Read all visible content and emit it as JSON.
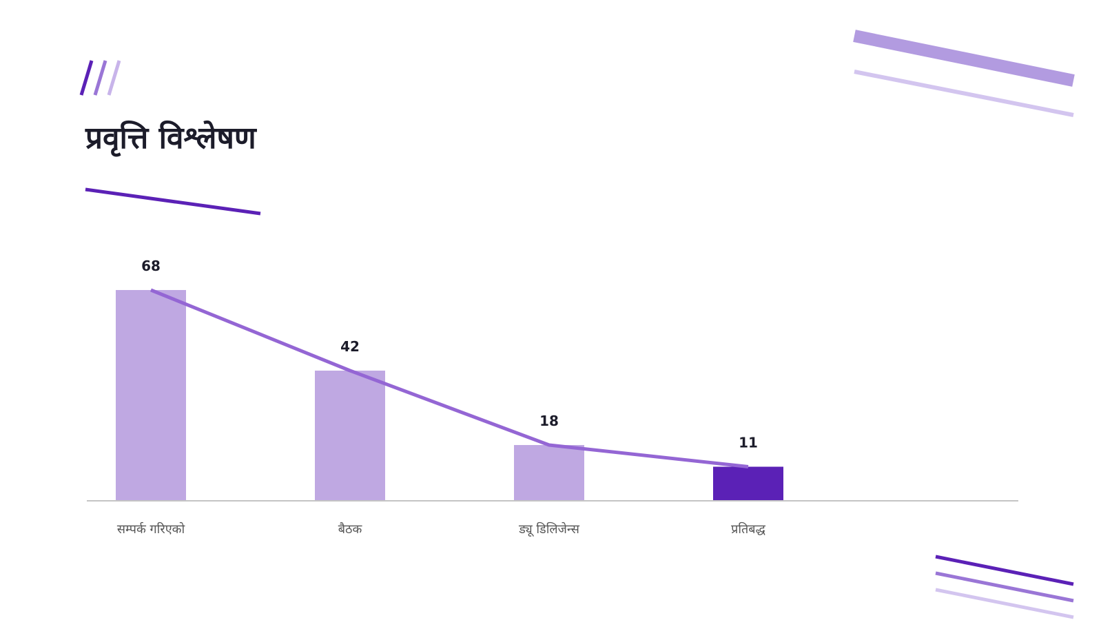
{
  "slide": {
    "title": "प्रवृत्ति विश्लेषण"
  },
  "colors": {
    "bar": "#bfa8e2",
    "bar_highlight": "#5b21b6",
    "line": "#9466d4",
    "accent": "#5b21b6",
    "axis": "#c4c4c4"
  },
  "chart_data": {
    "type": "bar",
    "categories": [
      "सम्पर्क गरिएको",
      "बैठक",
      "ड्यू डिलिजेन्स",
      "प्रतिबद्ध"
    ],
    "values": [
      68,
      42,
      18,
      11
    ],
    "highlight_index": 3,
    "trend_line": true,
    "title": "",
    "xlabel": "",
    "ylabel": "",
    "ylim": [
      0,
      68
    ],
    "grid": false,
    "data_labels": [
      "68",
      "42",
      "18",
      "11"
    ]
  }
}
